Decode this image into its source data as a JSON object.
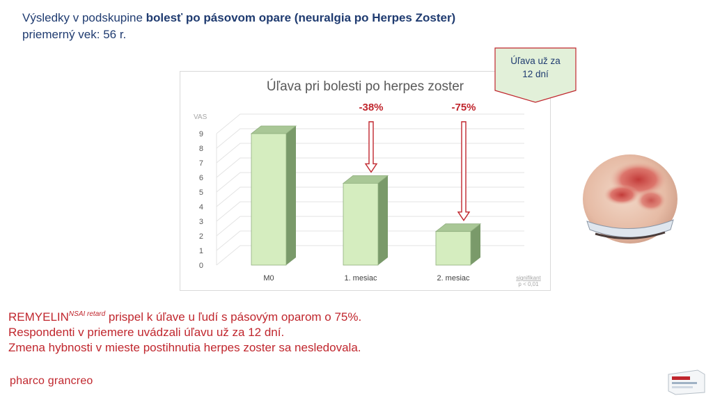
{
  "header": {
    "line1_prefix": "Výsledky v podskupine ",
    "line1_bold": "bolesť po pásovom opare (neuralgia po Herpes Zoster)",
    "line2": "priemerný vek: 56 r."
  },
  "callout": {
    "line1": "Úľava už za",
    "line2": "12 dní"
  },
  "chart_data": {
    "type": "bar",
    "title": "Úľava pri bolesti po herpes zoster",
    "ylabel": "VAS",
    "xlabel": "",
    "categories": [
      "M0",
      "1. mesiac",
      "2. mesiac"
    ],
    "values": [
      9,
      5.6,
      2.3
    ],
    "ylim": [
      0,
      9
    ],
    "yticks": [
      "0",
      "1",
      "2",
      "3",
      "4",
      "5",
      "6",
      "7",
      "8",
      "9"
    ],
    "grid": true,
    "annotations": [
      {
        "text": "-38%",
        "category": "1. mesiac"
      },
      {
        "text": "-75%",
        "category": "2. mesiac"
      }
    ],
    "significance": {
      "line1": "signifikant",
      "line2": "p < 0,01"
    },
    "colors": {
      "bar_front": "#d5edbf",
      "bar_side": "#7a9a6a",
      "bar_top": "#a9c796",
      "bar_edge": "#8fae7e",
      "arrow": "#c0262d",
      "callout_fill": "#e2f0d9"
    }
  },
  "bottom_text": {
    "line1_brand": "REMYELIN",
    "line1_sup": "NSAI retard",
    "line1_rest": " prispel k úľave u ľudí s pásovým oparom o 75%.",
    "line2": "Respondenti v priemere uvádzali úľavu už za 12 dní.",
    "line3": "Zmena hybnosti v mieste postihnutia herpes zoster sa nesledovala."
  },
  "logo": {
    "text": "pharco grancreo"
  }
}
